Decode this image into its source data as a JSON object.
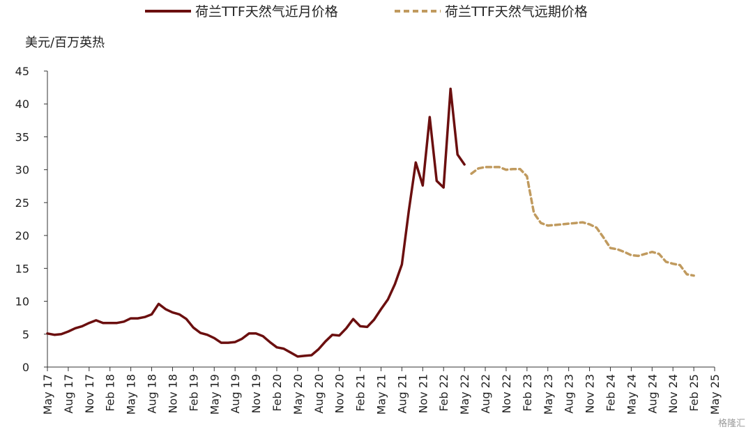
{
  "chart_data": {
    "type": "line",
    "ylabel": "美元/百万英热",
    "ylim": [
      0,
      45
    ],
    "yticks": [
      0,
      5,
      10,
      15,
      20,
      25,
      30,
      35,
      40,
      45
    ],
    "x_tick_labels": [
      "May 17",
      "Aug 17",
      "Nov 17",
      "Feb 18",
      "May 18",
      "Aug 18",
      "Nov 18",
      "Feb 19",
      "May 19",
      "Aug 19",
      "Nov 19",
      "Feb 20",
      "May 20",
      "Aug 20",
      "Nov 20",
      "Feb 21",
      "May 21",
      "Aug 21",
      "Nov 21",
      "Feb 22",
      "May 22",
      "Aug 22",
      "Nov 22",
      "Feb 23",
      "May 23",
      "Aug 23",
      "Nov 23",
      "Feb 24",
      "May 24",
      "Aug 24",
      "Nov 24",
      "Feb 25",
      "May 25"
    ],
    "x_start": "2017-05",
    "x_end": "2025-05",
    "legend_position": "top",
    "grid": false,
    "series": [
      {
        "name": "荷兰TTF天然气近月价格",
        "style": "solid",
        "color": "#6b0f0f",
        "values": [
          5.1,
          4.9,
          5.0,
          5.4,
          5.9,
          6.2,
          6.7,
          7.1,
          6.7,
          6.7,
          6.7,
          6.9,
          7.4,
          7.4,
          7.6,
          8.0,
          9.6,
          8.8,
          8.3,
          8.0,
          7.3,
          6.0,
          5.2,
          4.9,
          4.4,
          3.7,
          3.7,
          3.8,
          4.3,
          5.1,
          5.1,
          4.7,
          3.8,
          3.0,
          2.8,
          2.2,
          1.6,
          1.7,
          1.8,
          2.7,
          3.9,
          4.9,
          4.8,
          5.9,
          7.3,
          6.2,
          6.1,
          7.2,
          8.8,
          10.3,
          12.6,
          15.6,
          23.8,
          31.1,
          27.6,
          38.0,
          28.3,
          27.3,
          42.3,
          32.3,
          30.8
        ]
      },
      {
        "name": "荷兰TTF天然气远期价格",
        "style": "dashed",
        "color": "#c09a5e",
        "values": [
          29.4,
          30.2,
          30.4,
          30.4,
          30.4,
          30.0,
          30.1,
          30.1,
          29.0,
          23.4,
          21.9,
          21.5,
          21.6,
          21.7,
          21.8,
          21.9,
          22.0,
          21.7,
          21.2,
          19.7,
          18.1,
          17.9,
          17.5,
          17.0,
          16.9,
          17.2,
          17.5,
          17.2,
          16.0,
          15.7,
          15.5,
          14.1,
          13.9
        ]
      }
    ]
  },
  "watermark": "格隆汇"
}
